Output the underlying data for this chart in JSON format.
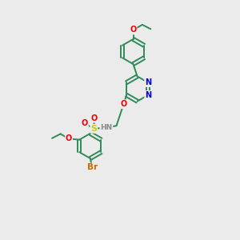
{
  "bg_color": "#ebebeb",
  "atom_colors": {
    "C": "#2e8b57",
    "N": "#0000ee",
    "O": "#ee0000",
    "S": "#cccc00",
    "Br": "#cc6600",
    "H": "#888888"
  },
  "bond_color": "#2e8b57",
  "bond_width": 1.4,
  "figsize": [
    3.0,
    3.0
  ],
  "dpi": 100
}
